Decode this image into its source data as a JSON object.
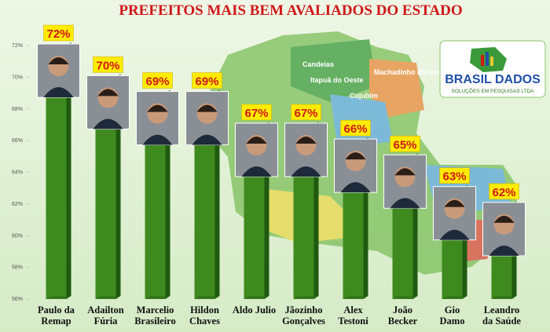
{
  "chart_data": {
    "type": "bar",
    "title": "PREFEITOS MAIS BEM AVALIADOS DO ESTADO",
    "categories": [
      "Paulo da\nRemap",
      "Adailton\nFúria",
      "Marcelio\nBrasileiro",
      "Hildon\nChaves",
      "Aldo Julio",
      "Jãozinho\nGonçalves",
      "Alex\nTestoni",
      "João\nBecker",
      "Gio\nDamo",
      "Leandro\nda Saúde"
    ],
    "values": [
      72,
      70,
      69,
      69,
      67,
      67,
      66,
      65,
      63,
      62
    ],
    "value_labels": [
      "72%",
      "70%",
      "69%",
      "69%",
      "67%",
      "67%",
      "66%",
      "65%",
      "63%",
      "62%"
    ],
    "color": "#3f8a1f",
    "ylim": [
      56,
      72
    ],
    "yticks": [
      {
        "value": 56,
        "label": "56%"
      },
      {
        "value": 58,
        "label": "58%"
      },
      {
        "value": 60,
        "label": "60%"
      },
      {
        "value": 62,
        "label": "62%"
      },
      {
        "value": 64,
        "label": "64%"
      },
      {
        "value": 66,
        "label": "66%"
      },
      {
        "value": 68,
        "label": "68%"
      },
      {
        "value": 70,
        "label": "70%"
      },
      {
        "value": 72,
        "label": "72%"
      }
    ],
    "logo": {
      "name": "BRASIL DADOS",
      "tagline": "SOLUÇÕES EM PESQUISAS LTDA"
    },
    "map_labels": [
      "Candeias",
      "Itapuã do Oeste",
      "Machadinho do Oeste",
      "Cujubim"
    ]
  }
}
